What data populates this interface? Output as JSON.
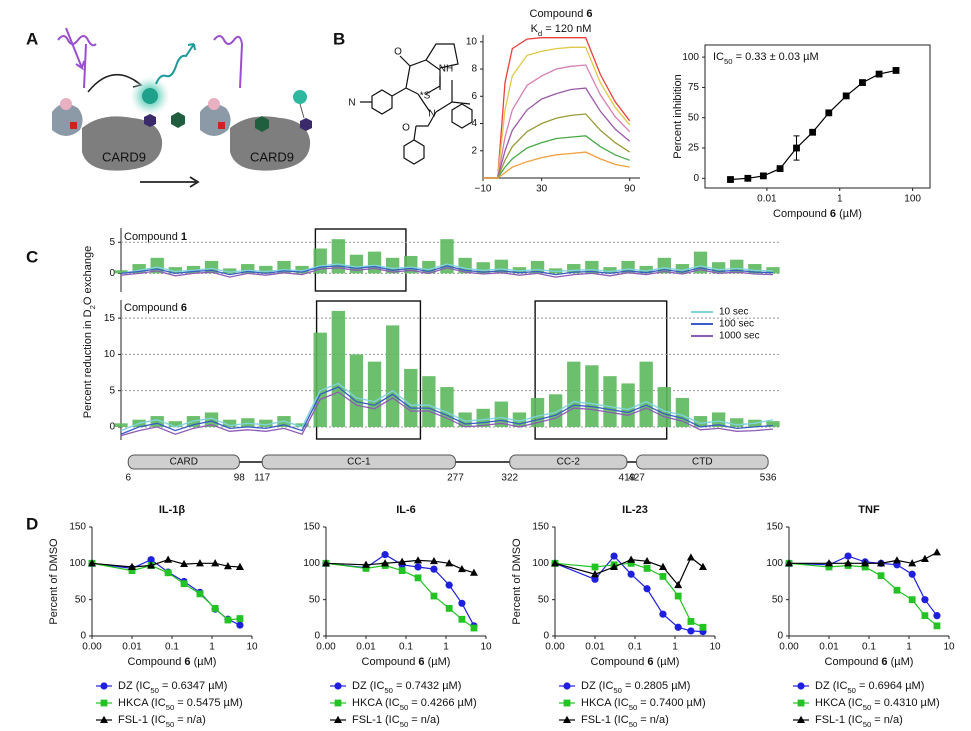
{
  "figure": {
    "panel_labels": [
      "A",
      "B",
      "C",
      "D"
    ],
    "schematic": {
      "labels": [
        "CARD9",
        "CARD9"
      ]
    },
    "structure": {
      "atoms": [
        "O",
        "NH",
        "*S",
        "N",
        "N",
        "O"
      ]
    }
  },
  "chart_data": [
    {
      "type": "line",
      "title": [
        "Compound ",
        "6"
      ],
      "subtitle": [
        "K",
        "d",
        " = 120 nM"
      ],
      "x": [
        -10,
        0,
        5,
        10,
        20,
        30,
        40,
        50,
        60,
        70,
        80,
        90
      ],
      "xlim": [
        -10,
        97
      ],
      "xticks": [
        {
          "value": -10,
          "label": "−10"
        },
        30,
        90
      ],
      "ylim": [
        0,
        10.5
      ],
      "yticks": [
        2,
        4,
        6,
        8,
        10
      ],
      "axes": "left-bottom",
      "series": [
        {
          "color": "#e8413c",
          "values": [
            0,
            0,
            7,
            9.5,
            10.2,
            10.3,
            10.3,
            10.3,
            10.3,
            7.6,
            5.6,
            4.2
          ]
        },
        {
          "color": "#e0c94a",
          "values": [
            0,
            0,
            5,
            7.5,
            9,
            9.3,
            9.5,
            9.6,
            9.6,
            7,
            5.2,
            3.9
          ]
        },
        {
          "color": "#d77fb4",
          "values": [
            0,
            0,
            3,
            5,
            6.8,
            7.5,
            8,
            8.2,
            8.3,
            6.1,
            4.5,
            3.4
          ]
        },
        {
          "color": "#9b59a8",
          "values": [
            0,
            0,
            2,
            3.5,
            5,
            5.8,
            6.2,
            6.5,
            6.6,
            4.9,
            3.6,
            2.7
          ]
        },
        {
          "color": "#9a9a3a",
          "values": [
            0,
            0,
            1.3,
            2.3,
            3.4,
            4,
            4.4,
            4.6,
            4.7,
            3.5,
            2.6,
            1.9
          ]
        },
        {
          "color": "#4aaa4a",
          "values": [
            0,
            0,
            0.8,
            1.4,
            2.2,
            2.6,
            2.9,
            3,
            3.1,
            2.3,
            1.7,
            1.3
          ]
        },
        {
          "color": "#f0a040",
          "values": [
            0,
            0,
            0.4,
            0.8,
            1.2,
            1.5,
            1.7,
            1.8,
            1.9,
            1.4,
            1,
            0.8
          ]
        }
      ]
    },
    {
      "type": "scatter",
      "line": true,
      "annotation": [
        "IC",
        "50",
        " = 0.33 ± 0.03 µM"
      ],
      "xlabel": [
        "Compound ",
        "6",
        " (µM)"
      ],
      "ylabel": "Percent inhibition",
      "xscale": "log",
      "x": [
        0.001,
        0.003,
        0.008,
        0.023,
        0.065,
        0.18,
        0.5,
        1.5,
        4.2,
        12,
        35
      ],
      "xlim": [
        0.0002,
        300
      ],
      "xticks": [
        0.01,
        1,
        100
      ],
      "ylim": [
        -8,
        110
      ],
      "yticks": [
        0,
        25,
        50,
        75,
        100
      ],
      "axes": "box",
      "series": [
        {
          "color": "#000000",
          "marker": "square",
          "values": [
            -1,
            0,
            2,
            8,
            25,
            38,
            54,
            68,
            79,
            86,
            89
          ],
          "errors": [
            null,
            null,
            null,
            null,
            10,
            null,
            null,
            null,
            null,
            null,
            null
          ]
        }
      ]
    },
    {
      "type": "line",
      "title": [
        "Compound ",
        "1"
      ],
      "x": [
        0,
        15,
        30,
        45,
        60,
        75,
        90,
        105,
        120,
        135,
        150,
        165,
        180,
        195,
        210,
        225,
        240,
        255,
        270,
        285,
        300,
        315,
        330,
        345,
        360,
        375,
        390,
        405,
        420,
        435,
        450,
        465,
        480,
        495,
        510,
        525,
        540
      ],
      "xlim": [
        0,
        545
      ],
      "ylim": [
        -3,
        7.3
      ],
      "yticks": [
        0,
        5
      ],
      "grid": "dotted",
      "axes": "left",
      "highlights": [
        [
          161,
          236
        ]
      ],
      "series": [
        {
          "style": "bar",
          "color": "#5cb85c",
          "values": [
            0.5,
            1.5,
            2.5,
            1,
            1.2,
            2,
            0.8,
            1.5,
            1.2,
            2,
            1.2,
            4,
            5.5,
            3,
            3.5,
            2.5,
            2.8,
            2,
            5.5,
            2.5,
            1.8,
            2.2,
            1,
            2,
            0.8,
            1.5,
            2,
            1,
            2,
            1.2,
            2.5,
            1.5,
            3.5,
            1.8,
            2.2,
            1.5,
            1
          ]
        },
        {
          "color": "#7fd4e0",
          "values": [
            0,
            0.5,
            1,
            0.3,
            0.5,
            0.8,
            0.2,
            0.5,
            0.3,
            0.6,
            0.4,
            1.2,
            1.5,
            1,
            1.3,
            0.8,
            1,
            0.6,
            1.5,
            0.8,
            0.5,
            0.7,
            0.4,
            0.6,
            0.3,
            0.5,
            0.6,
            0.3,
            0.7,
            0.4,
            0.9,
            0.5,
            1.2,
            0.6,
            0.8,
            0.5,
            0.4
          ]
        },
        {
          "color": "#3a5cc7",
          "values": [
            0,
            0.3,
            0.7,
            0,
            0.3,
            0.5,
            -0.2,
            0.3,
            0,
            0.4,
            0.2,
            1,
            1.2,
            0.8,
            1.1,
            0.5,
            0.8,
            0.3,
            1.2,
            0.5,
            0.2,
            0.4,
            0.1,
            0.3,
            -0.2,
            0.2,
            0.3,
            0,
            0.4,
            0.1,
            0.6,
            0.2,
            0.9,
            0.3,
            0.5,
            0.2,
            0.1
          ]
        },
        {
          "color": "#8e5bb5",
          "values": [
            -0.3,
            0,
            0.4,
            -0.4,
            0,
            0.2,
            -0.6,
            0,
            -0.3,
            0.1,
            -0.2,
            0.7,
            0.9,
            0.5,
            0.8,
            0.2,
            0.5,
            0,
            0.9,
            0.2,
            -0.1,
            0.1,
            -0.3,
            0,
            -0.6,
            -0.2,
            0,
            -0.4,
            0.1,
            -0.2,
            0.3,
            -0.1,
            0.6,
            0,
            0.2,
            -0.1,
            -0.2
          ]
        }
      ]
    },
    {
      "type": "line",
      "title": [
        "Compound ",
        "6"
      ],
      "ylabel": [
        "Percent reduction in D",
        "2",
        "O exchange"
      ],
      "x": [
        0,
        15,
        30,
        45,
        60,
        75,
        90,
        105,
        120,
        135,
        150,
        165,
        180,
        195,
        210,
        225,
        240,
        255,
        270,
        285,
        300,
        315,
        330,
        345,
        360,
        375,
        390,
        405,
        420,
        435,
        450,
        465,
        480,
        495,
        510,
        525,
        540
      ],
      "xlim": [
        0,
        545
      ],
      "ylim": [
        -1.8,
        17.5
      ],
      "yticks": [
        0,
        5,
        10,
        15
      ],
      "grid": "dotted",
      "axes": "left",
      "legend": "upper right",
      "highlights": [
        [
          162,
          248
        ],
        [
          343,
          452
        ]
      ],
      "domains": [
        {
          "name": "CARD",
          "start": 6,
          "end": 98
        },
        {
          "name": "CC-1",
          "start": 117,
          "end": 277
        },
        {
          "name": "CC-2",
          "start": 322,
          "end": 419
        },
        {
          "name": "CTD",
          "start": 427,
          "end": 536
        }
      ],
      "series": [
        {
          "style": "bar",
          "color": "#5cb85c",
          "values": [
            0.5,
            1,
            1.5,
            0.8,
            1.5,
            2,
            1,
            1.2,
            1,
            1.5,
            0.5,
            13,
            16,
            10,
            9,
            14,
            8,
            7,
            5.5,
            2,
            2.5,
            3.5,
            2,
            4,
            4.5,
            9,
            8.5,
            7,
            6,
            9,
            5.5,
            4,
            1.5,
            2,
            1.2,
            1,
            0.8
          ]
        },
        {
          "name": "10 sec",
          "color": "#7fd4e0",
          "values": [
            -0.5,
            0.5,
            1,
            0,
            0.8,
            1.2,
            0.2,
            0.5,
            0.3,
            0.8,
            0,
            5,
            6,
            4,
            3.5,
            5,
            3,
            3,
            2,
            0.8,
            1,
            1.3,
            0.8,
            1.5,
            2,
            3.5,
            3.2,
            2.8,
            2.4,
            3.5,
            2.2,
            1.6,
            0.5,
            0.8,
            0.3,
            0.5,
            1
          ]
        },
        {
          "name": "100 sec",
          "color": "#3a5cc7",
          "values": [
            -1,
            0,
            0.5,
            -0.5,
            0.3,
            0.8,
            -0.2,
            0,
            -0.2,
            0.3,
            -0.5,
            4.5,
            5.5,
            3.5,
            3,
            4.5,
            2.6,
            2.6,
            1.6,
            0.4,
            0.6,
            0.9,
            0.4,
            1,
            1.6,
            3,
            2.8,
            2.4,
            2,
            3,
            1.8,
            1.2,
            0,
            0.3,
            -0.2,
            0,
            0.2
          ]
        },
        {
          "name": "1000 sec",
          "color": "#8e5bb5",
          "values": [
            -1.2,
            -0.5,
            0,
            -1,
            -0.2,
            0.3,
            -0.6,
            -0.4,
            -0.6,
            -0.2,
            -1,
            3.8,
            4.8,
            3,
            2.5,
            4,
            2.2,
            2.2,
            1.2,
            0,
            0.2,
            0.5,
            0,
            0.6,
            1.2,
            2.6,
            2.4,
            2,
            1.6,
            2.6,
            1.4,
            0.8,
            -0.4,
            -0.2,
            -0.6,
            -0.5,
            -0.3
          ]
        }
      ]
    },
    {
      "type": "scatter",
      "line": true,
      "title": "IL-1β",
      "ylabel": "Percent of DMSO",
      "xlabel": [
        "Compound ",
        "6",
        " (µM)"
      ],
      "xscale": "log",
      "x": [
        0,
        0.01,
        0.03,
        0.08,
        0.2,
        0.5,
        1.2,
        2.5,
        5
      ],
      "xlim": [
        0,
        10
      ],
      "xticks": [
        {
          "value": 0,
          "label": "0.00"
        },
        0.01,
        0.1,
        1,
        10
      ],
      "ylim": [
        0,
        150
      ],
      "yticks": [
        0,
        50,
        100,
        150
      ],
      "axes": "left-bottom",
      "legend": "below",
      "series": [
        {
          "name": [
            "DZ (IC",
            "50",
            " = 0.6347 µM)"
          ],
          "color": "#1f1fe0",
          "marker": "circle",
          "values": [
            100,
            93,
            105,
            88,
            75,
            60,
            37,
            23,
            15
          ]
        },
        {
          "name": [
            "HKCA (IC",
            "50",
            " = 0.5475 µM)"
          ],
          "color": "#22c322",
          "marker": "square",
          "values": [
            100,
            90,
            97,
            87,
            72,
            58,
            38,
            22,
            24
          ]
        },
        {
          "name": [
            "FSL-1 (IC",
            "50",
            " = n/a)"
          ],
          "color": "#000000",
          "marker": "triangle",
          "values": [
            100,
            95,
            97,
            105,
            99,
            100,
            100,
            96,
            95
          ]
        }
      ]
    },
    {
      "type": "scatter",
      "line": true,
      "title": "IL-6",
      "xlabel": [
        "Compound ",
        "6",
        " (µM)"
      ],
      "xscale": "log",
      "x": [
        0,
        0.01,
        0.03,
        0.08,
        0.2,
        0.5,
        1.2,
        2.5,
        5
      ],
      "xlim": [
        0,
        10
      ],
      "xticks": [
        {
          "value": 0,
          "label": "0.00"
        },
        0.01,
        0.1,
        1,
        10
      ],
      "ylim": [
        0,
        150
      ],
      "yticks": [
        0,
        50,
        100,
        150
      ],
      "axes": "left-bottom",
      "legend": "below",
      "series": [
        {
          "name": [
            "DZ (IC",
            "50",
            " = 0.7432 µM)"
          ],
          "color": "#1f1fe0",
          "marker": "circle",
          "values": [
            100,
            94,
            112,
            98,
            95,
            92,
            70,
            45,
            14
          ]
        },
        {
          "name": [
            "HKCA (IC",
            "50",
            " = 0.4266 µM)"
          ],
          "color": "#22c322",
          "marker": "square",
          "values": [
            100,
            93,
            97,
            90,
            80,
            55,
            38,
            23,
            11
          ]
        },
        {
          "name": [
            "FSL-1 (IC",
            "50",
            " = n/a)"
          ],
          "color": "#000000",
          "marker": "triangle",
          "values": [
            100,
            98,
            100,
            102,
            104,
            103,
            100,
            92,
            87
          ]
        }
      ]
    },
    {
      "type": "scatter",
      "line": true,
      "title": "IL-23",
      "ylabel": "Percent of DMSO",
      "xlabel": [
        "Compound ",
        "6",
        " (µM)"
      ],
      "xscale": "log",
      "x": [
        0,
        0.01,
        0.03,
        0.08,
        0.2,
        0.5,
        1.2,
        2.5,
        5
      ],
      "xlim": [
        0,
        10
      ],
      "xticks": [
        {
          "value": 0,
          "label": "0.00"
        },
        0.01,
        0.1,
        1,
        10
      ],
      "ylim": [
        0,
        150
      ],
      "yticks": [
        0,
        50,
        100,
        150
      ],
      "axes": "left-bottom",
      "legend": "below",
      "series": [
        {
          "name": [
            "DZ (IC",
            "50",
            " = 0.2805 µM)"
          ],
          "color": "#1f1fe0",
          "marker": "circle",
          "values": [
            100,
            78,
            110,
            85,
            65,
            30,
            12,
            7,
            6
          ]
        },
        {
          "name": [
            "HKCA (IC",
            "50",
            " = 0.7400 µM)"
          ],
          "color": "#22c322",
          "marker": "square",
          "values": [
            100,
            95,
            98,
            100,
            93,
            82,
            55,
            20,
            12
          ]
        },
        {
          "name": [
            "FSL-1 (IC",
            "50",
            " = n/a)"
          ],
          "color": "#000000",
          "marker": "triangle",
          "values": [
            100,
            85,
            95,
            105,
            103,
            95,
            70,
            108,
            95
          ]
        }
      ]
    },
    {
      "type": "scatter",
      "line": true,
      "title": "TNF",
      "xlabel": [
        "Compound ",
        "6",
        " (µM)"
      ],
      "xscale": "log",
      "x": [
        0,
        0.01,
        0.03,
        0.08,
        0.2,
        0.5,
        1.2,
        2.5,
        5
      ],
      "xlim": [
        0,
        10
      ],
      "xticks": [
        {
          "value": 0,
          "label": "0.00"
        },
        0.01,
        0.1,
        1,
        10
      ],
      "ylim": [
        0,
        150
      ],
      "yticks": [
        0,
        50,
        100,
        150
      ],
      "axes": "left-bottom",
      "legend": "below",
      "series": [
        {
          "name": [
            "DZ (IC",
            "50",
            " = 0.6964 µM)"
          ],
          "color": "#1f1fe0",
          "marker": "circle",
          "values": [
            100,
            98,
            110,
            102,
            100,
            98,
            85,
            50,
            28
          ]
        },
        {
          "name": [
            "HKCA (IC",
            "50",
            " = 0.4310 µM)"
          ],
          "color": "#22c322",
          "marker": "square",
          "values": [
            100,
            95,
            97,
            95,
            83,
            63,
            50,
            28,
            14
          ]
        },
        {
          "name": [
            "FSL-1 (IC",
            "50",
            " = n/a)"
          ],
          "color": "#000000",
          "marker": "triangle",
          "values": [
            100,
            100,
            100,
            100,
            100,
            104,
            100,
            106,
            115
          ]
        }
      ]
    }
  ]
}
